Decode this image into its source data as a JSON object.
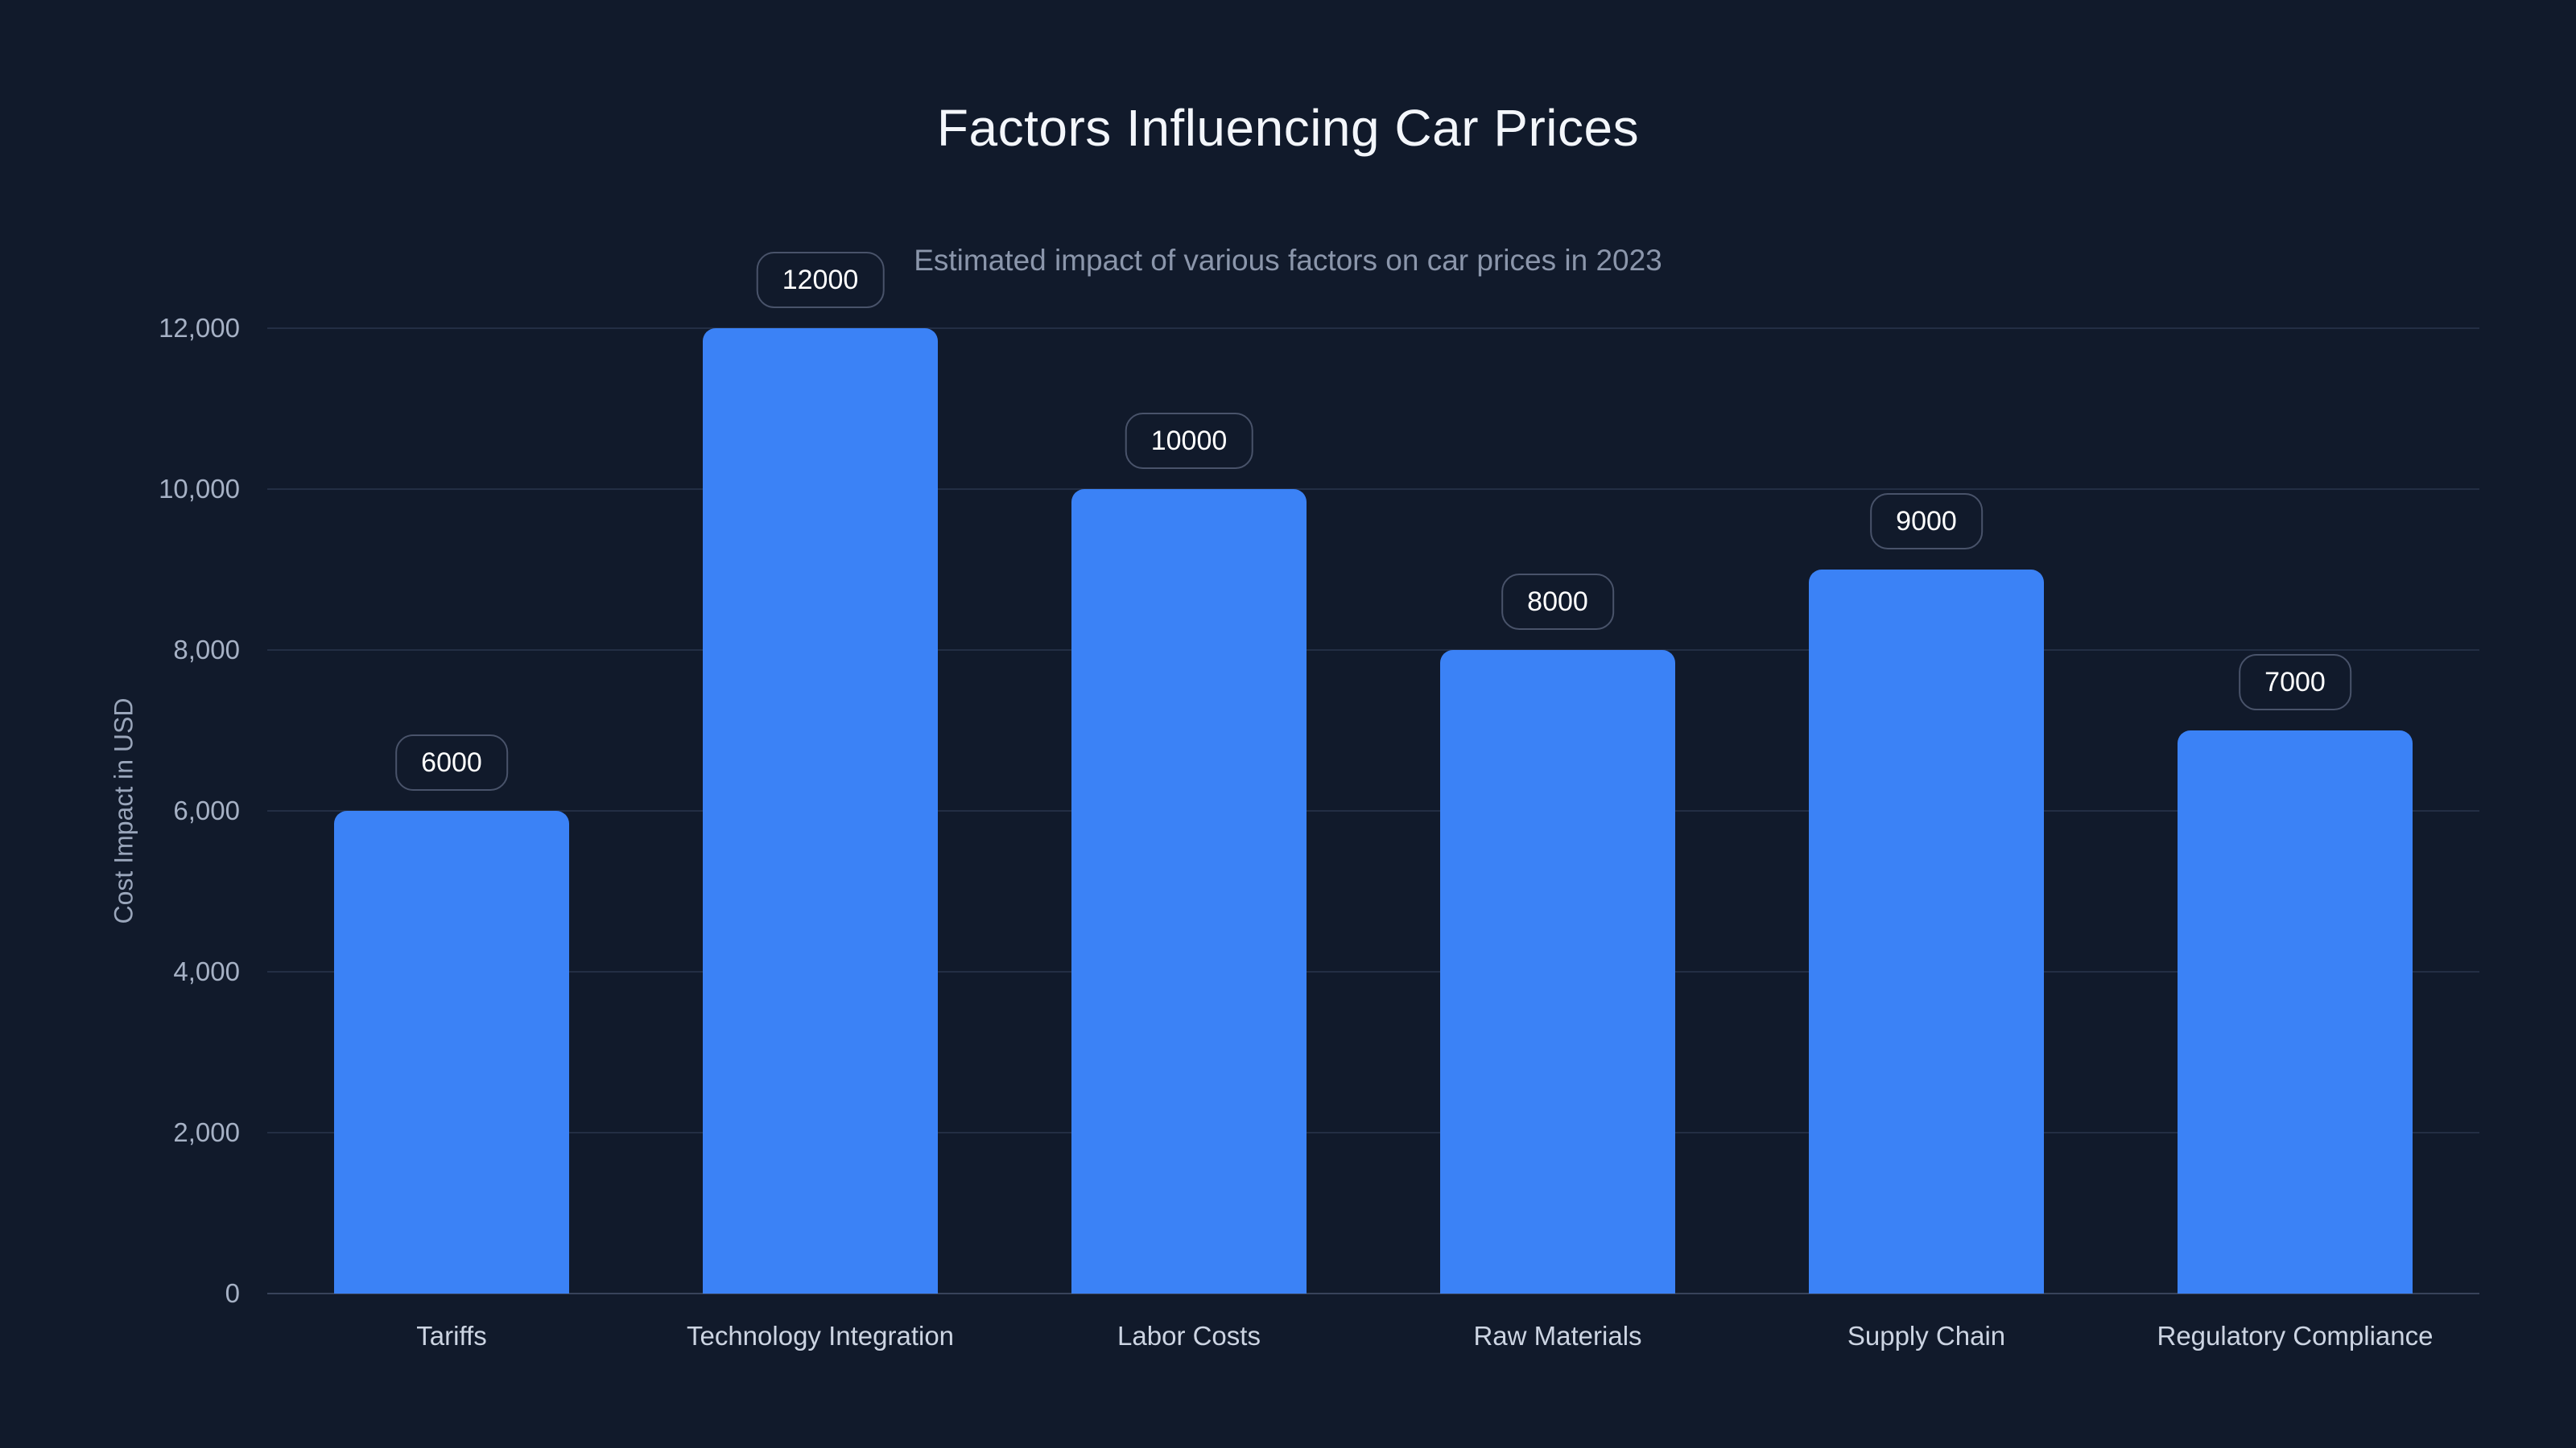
{
  "page": {
    "background": "#111a2b"
  },
  "colors": {
    "bg": "#111a2b",
    "bar": "#3b82f6",
    "grid": "#232e44",
    "axis": "#38435a",
    "title": "#f3f6fb",
    "subtitle": "#8b96ab",
    "tick": "#a6b1c5",
    "xlabel": "#ccd4e2",
    "ylabel": "#9aa6bb",
    "badge-border": "#49536a",
    "badge-text": "#ffffff"
  },
  "chart_data": {
    "type": "bar",
    "title": "Factors Influencing Car Prices",
    "subtitle": "Estimated impact of various factors on car prices in 2023",
    "xlabel": "",
    "ylabel": "Cost Impact in USD",
    "categories": [
      "Tariffs",
      "Technology Integration",
      "Labor Costs",
      "Raw Materials",
      "Supply Chain",
      "Regulatory Compliance"
    ],
    "values": [
      6000,
      12000,
      10000,
      8000,
      9000,
      7000
    ],
    "data_labels": [
      "6000",
      "12000",
      "10000",
      "8000",
      "9000",
      "7000"
    ],
    "ylim": [
      0,
      12000
    ],
    "ytick_values": [
      0,
      2000,
      4000,
      6000,
      8000,
      10000,
      12000
    ],
    "ytick_labels": [
      "0",
      "2,000",
      "4,000",
      "6,000",
      "8,000",
      "10,000",
      "12,000"
    ],
    "grid": "horizontal",
    "legend": "none",
    "bar_color": "#3b82f6"
  }
}
